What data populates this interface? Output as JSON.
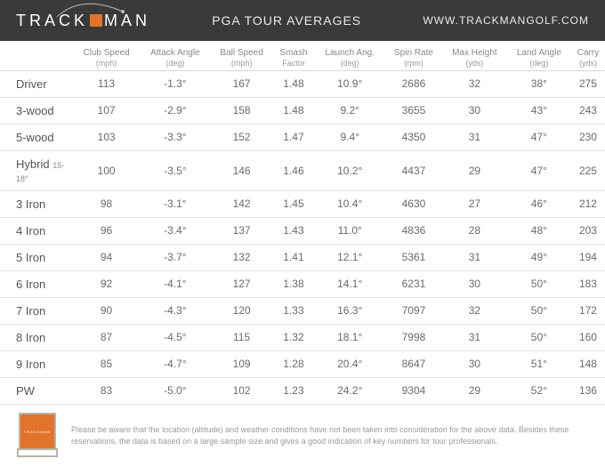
{
  "header": {
    "brand_pre": "TRACK",
    "brand_post": "MAN",
    "title": "PGA TOUR AVERAGES",
    "url": "WWW.TRACKMANGOLF.COM",
    "bg_color": "#3a3a3a",
    "accent_color": "#e2732a"
  },
  "table": {
    "columns": [
      {
        "label": "",
        "unit": ""
      },
      {
        "label": "Club Speed",
        "unit": "(mph)"
      },
      {
        "label": "Attack Angle",
        "unit": "(deg)"
      },
      {
        "label": "Ball Speed",
        "unit": "(mph)"
      },
      {
        "label": "Smash",
        "unit": "Factor"
      },
      {
        "label": "Launch Ang.",
        "unit": "(deg)"
      },
      {
        "label": "Spin Rate",
        "unit": "(rpm)"
      },
      {
        "label": "Max Height",
        "unit": "(yds)"
      },
      {
        "label": "Land Angle",
        "unit": "(deg)"
      },
      {
        "label": "Carry",
        "unit": "(yds)"
      }
    ],
    "rows": [
      {
        "club": "Driver",
        "sub": "",
        "club_speed": "113",
        "attack": "-1.3°",
        "ball_speed": "167",
        "smash": "1.48",
        "launch": "10.9°",
        "spin": "2686",
        "max_h": "32",
        "land": "38°",
        "carry": "275"
      },
      {
        "club": "3-wood",
        "sub": "",
        "club_speed": "107",
        "attack": "-2.9°",
        "ball_speed": "158",
        "smash": "1.48",
        "launch": "9.2°",
        "spin": "3655",
        "max_h": "30",
        "land": "43°",
        "carry": "243"
      },
      {
        "club": "5-wood",
        "sub": "",
        "club_speed": "103",
        "attack": "-3.3°",
        "ball_speed": "152",
        "smash": "1.47",
        "launch": "9.4°",
        "spin": "4350",
        "max_h": "31",
        "land": "47°",
        "carry": "230"
      },
      {
        "club": "Hybrid",
        "sub": "15-18°",
        "club_speed": "100",
        "attack": "-3.5°",
        "ball_speed": "146",
        "smash": "1.46",
        "launch": "10.2°",
        "spin": "4437",
        "max_h": "29",
        "land": "47°",
        "carry": "225"
      },
      {
        "club": "3 Iron",
        "sub": "",
        "club_speed": "98",
        "attack": "-3.1°",
        "ball_speed": "142",
        "smash": "1.45",
        "launch": "10.4°",
        "spin": "4630",
        "max_h": "27",
        "land": "46°",
        "carry": "212"
      },
      {
        "club": "4 Iron",
        "sub": "",
        "club_speed": "96",
        "attack": "-3.4°",
        "ball_speed": "137",
        "smash": "1.43",
        "launch": "11.0°",
        "spin": "4836",
        "max_h": "28",
        "land": "48°",
        "carry": "203"
      },
      {
        "club": "5 Iron",
        "sub": "",
        "club_speed": "94",
        "attack": "-3.7°",
        "ball_speed": "132",
        "smash": "1.41",
        "launch": "12.1°",
        "spin": "5361",
        "max_h": "31",
        "land": "49°",
        "carry": "194"
      },
      {
        "club": "6 Iron",
        "sub": "",
        "club_speed": "92",
        "attack": "-4.1°",
        "ball_speed": "127",
        "smash": "1.38",
        "launch": "14.1°",
        "spin": "6231",
        "max_h": "30",
        "land": "50°",
        "carry": "183"
      },
      {
        "club": "7 Iron",
        "sub": "",
        "club_speed": "90",
        "attack": "-4.3°",
        "ball_speed": "120",
        "smash": "1.33",
        "launch": "16.3°",
        "spin": "7097",
        "max_h": "32",
        "land": "50°",
        "carry": "172"
      },
      {
        "club": "8 Iron",
        "sub": "",
        "club_speed": "87",
        "attack": "-4.5°",
        "ball_speed": "115",
        "smash": "1.32",
        "launch": "18.1°",
        "spin": "7998",
        "max_h": "31",
        "land": "50°",
        "carry": "160"
      },
      {
        "club": "9 Iron",
        "sub": "",
        "club_speed": "85",
        "attack": "-4.7°",
        "ball_speed": "109",
        "smash": "1.28",
        "launch": "20.4°",
        "spin": "8647",
        "max_h": "30",
        "land": "51°",
        "carry": "148"
      },
      {
        "club": "PW",
        "sub": "",
        "club_speed": "83",
        "attack": "-5.0°",
        "ball_speed": "102",
        "smash": "1.23",
        "launch": "24.2°",
        "spin": "9304",
        "max_h": "29",
        "land": "52°",
        "carry": "136"
      }
    ]
  },
  "footer": {
    "note": "Please be aware that the location (altitude) and weather conditions have not been taken into consideration for the above data. Besides these reservations, the data is based on a large sample size and gives a good indication of key numbers for tour professionals.",
    "device_color": "#e2732a",
    "device_frame": "#b8b2a6"
  }
}
